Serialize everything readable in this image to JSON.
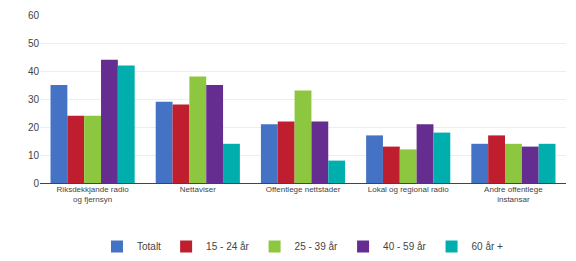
{
  "chart_data": {
    "type": "bar",
    "categories": [
      "Riksdekkjande radio\nog fjernsyn",
      "Nettaviser",
      "Offentlege nettstader",
      "Lokal og regional radio",
      "Andre offentlege\ninstansar"
    ],
    "series": [
      {
        "name": "Totalt",
        "color": "#4472C4",
        "values": [
          35,
          29,
          21,
          17,
          14
        ]
      },
      {
        "name": "15 - 24 år",
        "color": "#BE1E2D",
        "values": [
          24,
          28,
          22,
          13,
          17
        ]
      },
      {
        "name": "25 - 39 år",
        "color": "#8DC63F",
        "values": [
          24,
          38,
          33,
          12,
          14
        ]
      },
      {
        "name": "40 - 59 år",
        "color": "#662D91",
        "values": [
          44,
          35,
          22,
          21,
          13
        ]
      },
      {
        "name": "60 år +",
        "color": "#00AEAE",
        "values": [
          42,
          14,
          8,
          18,
          14
        ]
      }
    ],
    "ylim": [
      0,
      60
    ],
    "yticks": [
      0,
      10,
      20,
      30,
      40,
      50,
      60
    ],
    "grid": true,
    "legend": "bottom"
  }
}
